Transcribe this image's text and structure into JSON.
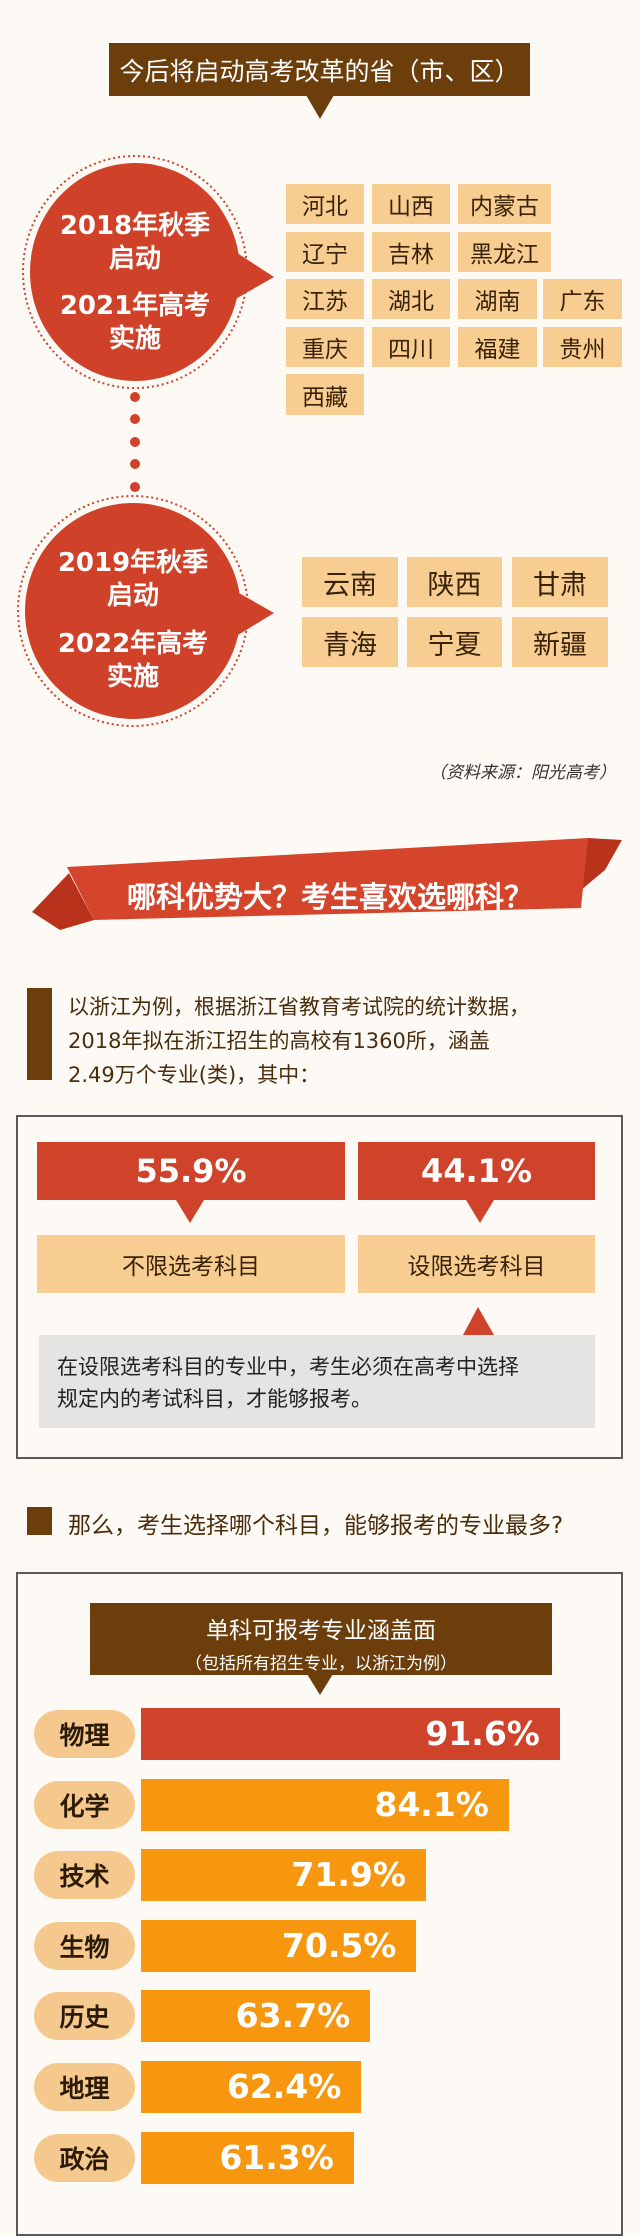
{
  "section1": {
    "title": "今后将启动高考改革的省（市、区）",
    "group1": {
      "lines": [
        "2018年秋季",
        "启动",
        "2021年高考",
        "实施"
      ],
      "provinces": [
        "河北",
        "山西",
        "内蒙古",
        "辽宁",
        "吉林",
        "黑龙江",
        "江苏",
        "湖北",
        "湖南",
        "广东",
        "重庆",
        "四川",
        "福建",
        "贵州",
        "西藏"
      ]
    },
    "group2": {
      "lines": [
        "2019年秋季",
        "启动",
        "2022年高考",
        "实施"
      ],
      "provinces": [
        "云南",
        "陕西",
        "甘肃",
        "青海",
        "宁夏",
        "新疆"
      ]
    },
    "source": "（资料来源：阳光高考）"
  },
  "section2": {
    "banner": "哪科优势大？考生喜欢选哪科？",
    "paragraph": [
      "以浙江为例，根据浙江省教育考试院的统计数据，",
      "2018年拟在浙江招生的高校有1360所，涵盖",
      "2.49万个专业(类)，其中："
    ],
    "unrestricted": {
      "percent": "55.9%",
      "label": "不限选考科目"
    },
    "restricted": {
      "percent": "44.1%",
      "label": "设限选考科目"
    },
    "note": [
      "在设限选考科目的专业中，考生必须在高考中选择",
      "规定内的考试科目，才能够报考。"
    ],
    "question": "那么，考生选择哪个科目，能够报考的专业最多?"
  },
  "colors": {
    "brown": "#6b3e0c",
    "red": "#d0432b",
    "beige": "#f7cd91",
    "orange": "#f7960f"
  },
  "chart_data": {
    "type": "bar",
    "orientation": "horizontal",
    "title": "单科可报考专业涵盖面",
    "subtitle": "（包括所有招生专业，以浙江为例）",
    "categories": [
      "物理",
      "化学",
      "技术",
      "生物",
      "历史",
      "地理",
      "政治"
    ],
    "values": [
      91.6,
      84.1,
      71.9,
      70.5,
      63.7,
      62.4,
      61.3
    ],
    "labels": [
      "91.6%",
      "84.1%",
      "71.9%",
      "70.5%",
      "63.7%",
      "62.4%",
      "61.3%"
    ],
    "unit": "%",
    "bar_colors": [
      "#d0432b",
      "#f7960f",
      "#f7960f",
      "#f7960f",
      "#f7960f",
      "#f7960f",
      "#f7960f"
    ],
    "grid": false
  }
}
